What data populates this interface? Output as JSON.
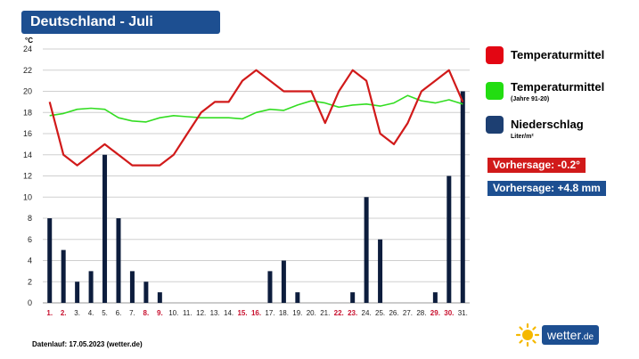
{
  "header": {
    "title": "Deutschland - Juli"
  },
  "chart_data": {
    "type": "bar+line",
    "unit_label": "°C",
    "ylim": [
      0,
      24
    ],
    "y_ticks": [
      0,
      2,
      4,
      6,
      8,
      10,
      12,
      14,
      16,
      18,
      20,
      22,
      24
    ],
    "categories": [
      "1.",
      "2.",
      "3.",
      "4.",
      "5.",
      "6.",
      "7.",
      "8.",
      "9.",
      "10.",
      "11.",
      "12.",
      "13.",
      "14.",
      "15.",
      "16.",
      "17.",
      "18.",
      "19.",
      "20.",
      "21.",
      "22.",
      "23.",
      "24.",
      "25.",
      "26.",
      "27.",
      "28.",
      "29.",
      "30.",
      "31."
    ],
    "weekend_days": [
      "1.",
      "2.",
      "8.",
      "9.",
      "15.",
      "16.",
      "22.",
      "23.",
      "29.",
      "30."
    ],
    "grid": true,
    "series": [
      {
        "name": "Niederschlag",
        "type": "bar",
        "color": "#0d1d3d",
        "values": [
          8,
          5,
          2,
          3,
          14,
          8,
          3,
          2,
          1,
          0,
          0,
          0,
          0,
          0,
          0,
          0,
          3,
          4,
          1,
          0,
          0,
          0,
          1,
          10,
          6,
          0,
          0,
          0,
          1,
          12,
          20
        ]
      },
      {
        "name": "Temperaturmittel (Jahre 91-20)",
        "type": "line",
        "color": "#33dd22",
        "values": [
          17.7,
          17.9,
          18.3,
          18.4,
          18.3,
          17.5,
          17.2,
          17.1,
          17.5,
          17.7,
          17.6,
          17.5,
          17.5,
          17.5,
          17.4,
          18.0,
          18.3,
          18.2,
          18.7,
          19.1,
          18.9,
          18.5,
          18.7,
          18.8,
          18.6,
          18.9,
          19.6,
          19.1,
          18.9,
          19.2,
          18.8
        ]
      },
      {
        "name": "Temperaturmittel",
        "type": "line",
        "color": "#d11a1a",
        "values": [
          19,
          14,
          13,
          14,
          15,
          14,
          13,
          13,
          13,
          14,
          16,
          18,
          19,
          19,
          21,
          22,
          21,
          20,
          20,
          20,
          17,
          20,
          22,
          21,
          16,
          15,
          17,
          20,
          21,
          22,
          19
        ]
      }
    ]
  },
  "legend": {
    "items": [
      {
        "label": "Temperaturmittel",
        "sub": "",
        "color": "#e30613"
      },
      {
        "label": "Temperaturmittel",
        "sub": "(Jahre 91-20)",
        "color": "#22dd11"
      },
      {
        "label": "Niederschlag",
        "sub": "Liter/m²",
        "color": "#1d3f72"
      }
    ]
  },
  "forecast": {
    "temperature": "Vorhersage: -0.2°",
    "temperature_color": "#d11a1a",
    "precipitation": "Vorhersage: +4.8 mm",
    "precipitation_color": "#1d4f91"
  },
  "footer": {
    "text": "Datenlauf: 17.05.2023 (wetter.de)"
  },
  "logo": {
    "name": "wetter",
    "tld": ".de",
    "icon": "sun-icon"
  }
}
